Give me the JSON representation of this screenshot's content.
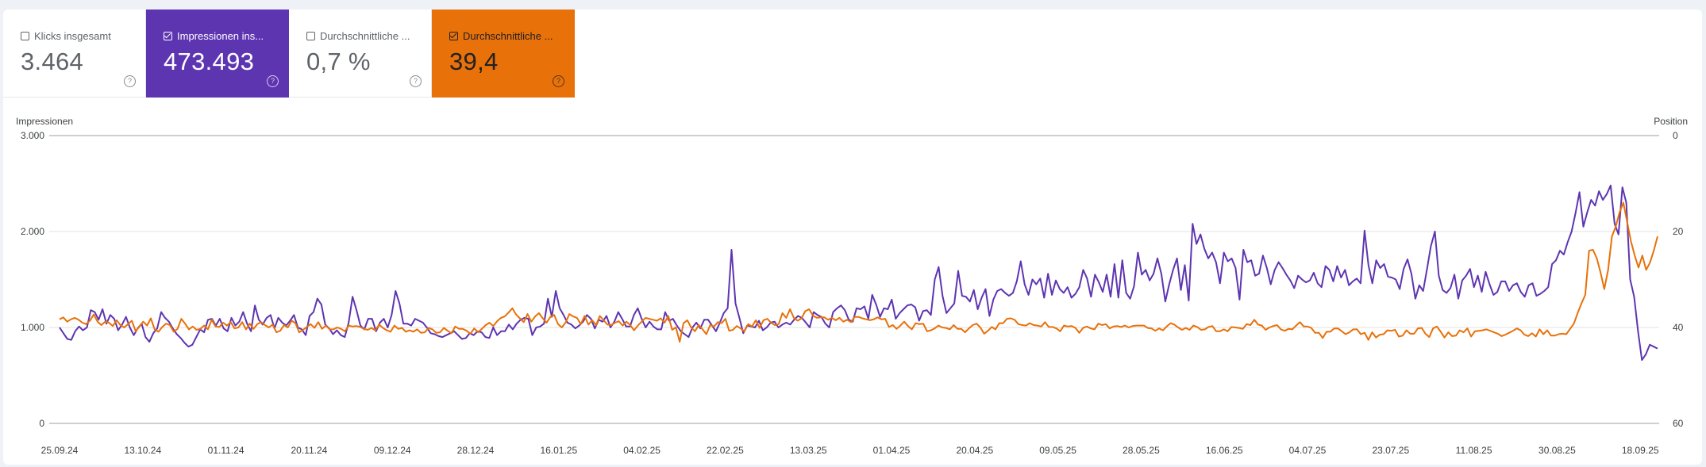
{
  "metrics": [
    {
      "label": "Klicks insgesamt",
      "value": "3.464",
      "checked": false
    },
    {
      "label": "Impressionen ins...",
      "value": "473.493",
      "checked": true
    },
    {
      "label": "Durchschnittliche ...",
      "value": "0,7 %",
      "checked": false
    },
    {
      "label": "Durchschnittliche ...",
      "value": "39,4",
      "checked": true
    }
  ],
  "help_glyph": "?",
  "colors": {
    "impressions": "#5e35b1",
    "position": "#e8710a",
    "grid": "#e0e0e0",
    "axis": "#9aa0a6"
  },
  "chart_data": {
    "type": "line",
    "left_axis": {
      "label": "Impressionen",
      "range": [
        0,
        3000
      ],
      "ticks": [
        "0",
        "1.000",
        "2.000",
        "3.000"
      ]
    },
    "right_axis": {
      "label": "Position",
      "range": [
        60,
        0
      ],
      "reversed": true,
      "ticks": [
        "0",
        "20",
        "40",
        "60"
      ]
    },
    "x_tick_labels": [
      "25.09.24",
      "13.10.24",
      "01.11.24",
      "20.11.24",
      "09.12.24",
      "28.12.24",
      "16.01.25",
      "04.02.25",
      "22.02.25",
      "13.03.25",
      "01.04.25",
      "20.04.25",
      "09.05.25",
      "28.05.25",
      "16.06.25",
      "04.07.25",
      "23.07.25",
      "11.08.25",
      "30.08.25",
      "18.09.25"
    ],
    "x_range": [
      "25.09.24",
      "24.09.25"
    ],
    "grid": true,
    "series": [
      {
        "name": "Impressionen",
        "axis": "left",
        "color": "#5e35b1",
        "values": [
          1000,
          940,
          880,
          870,
          960,
          1010,
          970,
          1000,
          1180,
          1160,
          1080,
          1190,
          1040,
          1130,
          1090,
          970,
          1030,
          1110,
          1000,
          920,
          990,
          1040,
          900,
          850,
          940,
          990,
          1160,
          1100,
          1060,
          990,
          930,
          890,
          840,
          800,
          820,
          900,
          980,
          950,
          1080,
          1090,
          1020,
          1090,
          990,
          960,
          1100,
          1020,
          1060,
          1160,
          1040,
          960,
          1230,
          1080,
          1030,
          1100,
          1130,
          990,
          1100,
          1050,
          1020,
          1070,
          1130,
          1000,
          980,
          920,
          1120,
          1160,
          1300,
          1240,
          1030,
          990,
          930,
          970,
          920,
          900,
          1050,
          1320,
          1180,
          1020,
          980,
          1090,
          1090,
          960,
          1050,
          1090,
          1000,
          1130,
          1380,
          1250,
          1040,
          1040,
          1020,
          1090,
          1070,
          1050,
          1000,
          940,
          930,
          910,
          900,
          920,
          940,
          960,
          920,
          880,
          890,
          940,
          920,
          960,
          950,
          900,
          890,
          1000,
          920,
          960,
          960,
          1030,
          980,
          1040,
          1080,
          1100,
          1090,
          920,
          1000,
          1010,
          1040,
          1300,
          1110,
          1380,
          1200,
          1130,
          1050,
          1030,
          990,
          1020,
          1060,
          1130,
          1090,
          990,
          1080,
          1060,
          1120,
          1000,
          1060,
          1160,
          1090,
          1010,
          1010,
          1130,
          1200,
          1090,
          1000,
          1060,
          1010,
          980,
          980,
          1160,
          1070,
          1090,
          1020,
          960,
          930,
          900,
          1000,
          1050,
          990,
          1080,
          1080,
          1020,
          960,
          1050,
          1150,
          1200,
          1810,
          1250,
          1100,
          940,
          1020,
          1010,
          1000,
          1070,
          970,
          1000,
          1050,
          1060,
          1000,
          1030,
          1050,
          1030,
          1080,
          1120,
          1100,
          1050,
          1000,
          1160,
          1130,
          1110,
          1040,
          1000,
          1160,
          1200,
          1230,
          1180,
          1080,
          1060,
          1200,
          1190,
          1220,
          1090,
          1340,
          1240,
          1110,
          1200,
          1190,
          1290,
          1090,
          1150,
          1190,
          1230,
          1240,
          1210,
          1070,
          1170,
          1180,
          1130,
          1500,
          1630,
          1330,
          1150,
          1200,
          1250,
          1590,
          1330,
          1320,
          1270,
          1390,
          1190,
          1310,
          1400,
          1120,
          1290,
          1380,
          1400,
          1360,
          1330,
          1360,
          1480,
          1690,
          1450,
          1340,
          1500,
          1450,
          1510,
          1310,
          1560,
          1340,
          1490,
          1400,
          1360,
          1420,
          1310,
          1350,
          1420,
          1600,
          1510,
          1320,
          1550,
          1470,
          1370,
          1550,
          1320,
          1660,
          1310,
          1700,
          1360,
          1300,
          1430,
          1780,
          1550,
          1600,
          1490,
          1560,
          1720,
          1560,
          1270,
          1450,
          1600,
          1720,
          1390,
          1650,
          1280,
          2080,
          1870,
          1970,
          1820,
          1720,
          1780,
          1680,
          1460,
          1780,
          1690,
          1720,
          1620,
          1290,
          1810,
          1680,
          1700,
          1540,
          1560,
          1750,
          1620,
          1450,
          1600,
          1680,
          1620,
          1550,
          1490,
          1410,
          1540,
          1500,
          1470,
          1490,
          1570,
          1460,
          1420,
          1640,
          1600,
          1480,
          1640,
          1520,
          1600,
          1440,
          1480,
          1510,
          1460,
          2010,
          1650,
          1460,
          1700,
          1620,
          1660,
          1530,
          1520,
          1500,
          1400,
          1610,
          1710,
          1560,
          1300,
          1440,
          1380,
          1610,
          1850,
          2000,
          1540,
          1390,
          1360,
          1410,
          1550,
          1300,
          1490,
          1540,
          1610,
          1420,
          1540,
          1370,
          1580,
          1450,
          1340,
          1370,
          1480,
          1480,
          1380,
          1440,
          1460,
          1370,
          1320,
          1440,
          1460,
          1330,
          1350,
          1380,
          1420,
          1660,
          1700,
          1800,
          1760,
          1890,
          2000,
          2190,
          2410,
          2050,
          2200,
          2330,
          2270,
          2420,
          2330,
          2390,
          2480,
          2080,
          1970,
          2460,
          2300,
          1500,
          1320,
          960,
          660,
          720,
          820,
          800,
          780
        ],
        "note": "values approximate, read from plot"
      },
      {
        "name": "Position",
        "axis": "right",
        "color": "#e8710a",
        "values": [
          38.3,
          37.9,
          38.8,
          38.3,
          38.0,
          38.4,
          39.0,
          39.3,
          38.6,
          37.3,
          38.8,
          39.5,
          38.8,
          39.0,
          39.7,
          38.5,
          39.5,
          40.0,
          39.3,
          38.6,
          40.8,
          39.8,
          38.8,
          39.6,
          38.1,
          40.4,
          40.9,
          39.9,
          39.2,
          39.5,
          40.9,
          40.3,
          38.2,
          39.2,
          40.4,
          39.8,
          40.5,
          40.3,
          39.6,
          40.4,
          38.4,
          39.8,
          39.9,
          39.0,
          39.6,
          38.9,
          40.2,
          40.0,
          38.9,
          40.4,
          39.2,
          40.3,
          39.3,
          38.9,
          39.5,
          40.0,
          39.4,
          41.0,
          40.7,
          39.5,
          40.0,
          38.6,
          39.1,
          41.0,
          40.5,
          39.9,
          39.3,
          40.1,
          38.9,
          40.3,
          39.6,
          40.4,
          40.4,
          40.0,
          40.3,
          40.8,
          39.6,
          39.8,
          39.7,
          39.9,
          40.3,
          40.5,
          40.1,
          40.6,
          39.4,
          40.1,
          40.6,
          40.9,
          39.6,
          40.3,
          40.1,
          40.9,
          40.6,
          40.9,
          40.4,
          41.1,
          41.0,
          40.1,
          40.4,
          41.1,
          41.0,
          40.1,
          40.7,
          41.2,
          39.8,
          40.3,
          40.3,
          40.7,
          41.3,
          40.2,
          41.0,
          40.3,
          39.5,
          39.0,
          39.7,
          38.7,
          38.0,
          37.7,
          36.9,
          36.0,
          37.3,
          38.1,
          38.9,
          37.2,
          38.8,
          37.7,
          37.0,
          38.1,
          39.0,
          37.8,
          37.4,
          39.3,
          40.0,
          39.0,
          37.2,
          37.7,
          38.0,
          39.3,
          37.6,
          39.4,
          38.5,
          39.5,
          37.6,
          38.5,
          39.4,
          39.5,
          39.0,
          38.7,
          39.6,
          38.8,
          39.5,
          40.6,
          39.6,
          38.8,
          38.0,
          38.2,
          38.4,
          38.6,
          38.1,
          39.0,
          37.6,
          40.5,
          40.0,
          43.0,
          39.1,
          38.5,
          40.0,
          40.8,
          39.5,
          40.4,
          41.4,
          39.5,
          39.8,
          38.9,
          39.1,
          38.2,
          40.7,
          40.5,
          39.7,
          40.2,
          40.8,
          39.3,
          39.8,
          38.5,
          40.1,
          38.5,
          38.2,
          39.0,
          39.5,
          39.3,
          37.0,
          38.0,
          36.2,
          38.0,
          38.6,
          38.1,
          36.6,
          36.2,
          37.5,
          38.0,
          37.9,
          37.9,
          38.4,
          38.0,
          38.5,
          38.0,
          38.8,
          38.4,
          38.9,
          37.8,
          37.8,
          38.1,
          38.3,
          38.5,
          38.3,
          37.9,
          38.3,
          38.2,
          39.9,
          39.5,
          40.3,
          39.6,
          38.8,
          39.7,
          40.4,
          39.1,
          39.3,
          39.2,
          40.8,
          40.6,
          40.2,
          39.6,
          40.0,
          40.1,
          40.4,
          39.5,
          40.3,
          40.3,
          41.0,
          40.2,
          39.5,
          39.2,
          40.0,
          41.3,
          40.7,
          39.9,
          40.4,
          39.1,
          39.1,
          38.2,
          38.1,
          38.4,
          39.3,
          39.5,
          39.6,
          39.1,
          39.5,
          39.6,
          39.8,
          38.9,
          39.9,
          39.9,
          40.2,
          40.8,
          39.6,
          39.8,
          39.7,
          40.1,
          41.1,
          40.1,
          39.8,
          40.2,
          40.4,
          39.2,
          39.5,
          39.3,
          40.2,
          39.8,
          39.7,
          39.9,
          39.6,
          40.0,
          39.7,
          39.6,
          39.6,
          39.6,
          40.1,
          40.2,
          40.7,
          40.2,
          40.6,
          39.8,
          39.1,
          39.4,
          40.0,
          40.5,
          40.1,
          40.5,
          39.6,
          39.9,
          40.5,
          40.4,
          39.9,
          39.7,
          40.8,
          40.8,
          40.4,
          40.8,
          39.9,
          40.0,
          40.1,
          40.3,
          39.3,
          39.5,
          38.4,
          39.4,
          39.6,
          40.5,
          40.0,
          39.7,
          39.5,
          40.4,
          40.7,
          40.3,
          40.4,
          39.6,
          38.9,
          39.8,
          39.8,
          40.1,
          41.1,
          41.1,
          42.2,
          40.9,
          40.9,
          40.2,
          40.2,
          40.8,
          41.4,
          41.0,
          40.4,
          40.4,
          41.4,
          41.1,
          42.6,
          41.0,
          42.1,
          41.5,
          41.4,
          40.6,
          40.7,
          40.5,
          41.9,
          41.7,
          40.6,
          41.3,
          41.3,
          40.2,
          40.1,
          41.3,
          42.0,
          40.2,
          39.8,
          40.9,
          42.1,
          41.0,
          41.8,
          41.7,
          40.6,
          41.0,
          40.2,
          41.9,
          40.8,
          40.7,
          40.6,
          40.4,
          40.7,
          41.0,
          41.3,
          41.8,
          41.5,
          41.1,
          40.7,
          40.2,
          40.6,
          41.5,
          41.8,
          41.2,
          41.9,
          40.4,
          41.4,
          40.6,
          41.7,
          41.7,
          41.4,
          41.3,
          41.4,
          40.3,
          39.2,
          37.0,
          35.0,
          33.2,
          24.0,
          23.8,
          25.5,
          28.5,
          32.0,
          28.0,
          21.0,
          19.0,
          16.0,
          14.0,
          18.0,
          22.0,
          25.0,
          27.5,
          25.0,
          28.0,
          26.5,
          24.0,
          21.0
        ],
        "note": "values approximate, read from plot"
      }
    ]
  }
}
